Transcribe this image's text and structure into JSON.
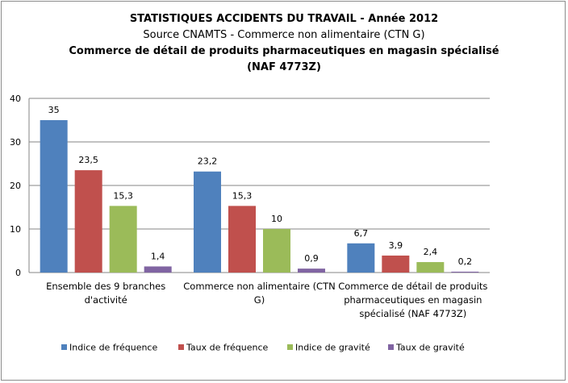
{
  "chart_data": {
    "type": "bar",
    "title": "STATISTIQUES ACCIDENTS DU TRAVAIL - Année 2012",
    "subtitle_lines": [
      "Source CNAMTS -  Commerce non alimentaire (CTN  G)",
      "Commerce de détail de produits pharmaceutiques en magasin spécialisé",
      "(NAF 4773Z)"
    ],
    "categories": [
      [
        "Ensemble des 9 branches",
        "d'activité"
      ],
      [
        "Commerce non alimentaire (CTN",
        "G)"
      ],
      [
        "Commerce de détail de produits",
        "pharmaceutiques en magasin",
        "spécialisé (NAF 4773Z)"
      ]
    ],
    "series": [
      {
        "name": "Indice de fréquence",
        "values": [
          35,
          23.2,
          6.7
        ],
        "labels": [
          "35",
          "23,2",
          "6,7"
        ],
        "color": "#4f81bd"
      },
      {
        "name": "Taux de fréquence",
        "values": [
          23.5,
          15.3,
          3.9
        ],
        "labels": [
          "23,5",
          "15,3",
          "3,9"
        ],
        "color": "#c0504d"
      },
      {
        "name": "Indice de gravité",
        "values": [
          15.3,
          10,
          2.4
        ],
        "labels": [
          "15,3",
          "10",
          "2,4"
        ],
        "color": "#9bbb59"
      },
      {
        "name": "Taux de gravité",
        "values": [
          1.4,
          0.9,
          0.2
        ],
        "labels": [
          "1,4",
          "0,9",
          "0,2"
        ],
        "color": "#8064a2"
      }
    ],
    "ylim": [
      0,
      40
    ],
    "yticks": [
      0,
      10,
      20,
      30,
      40
    ],
    "grid": true,
    "legend": "bottom"
  }
}
